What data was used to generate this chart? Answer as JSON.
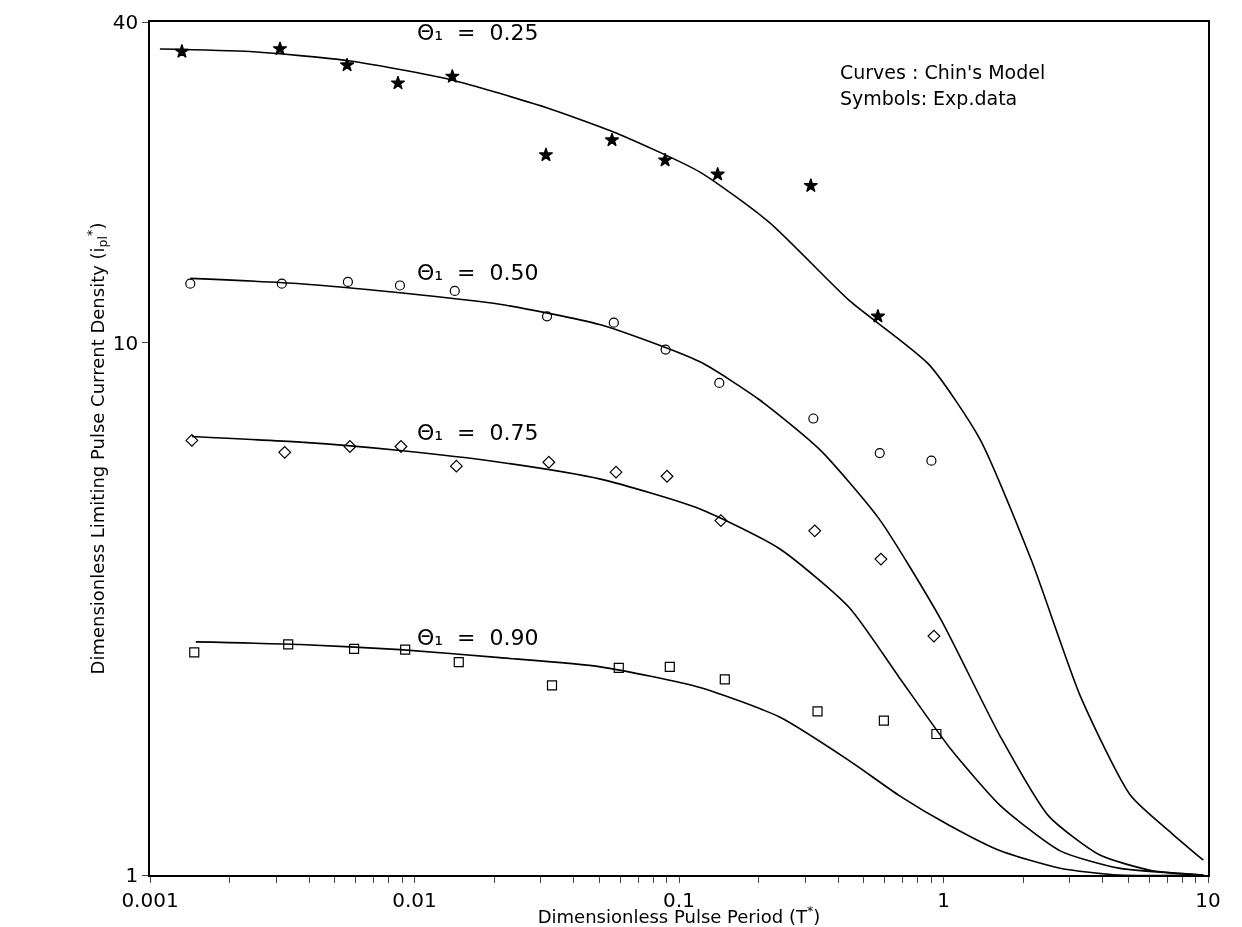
{
  "chart_data": {
    "type": "scatter",
    "xlabel": "Dimensionless Pulse Period (T$^{*}$)",
    "ylabel": "Dimensionless Limiting Pulse Current Density (i$_{pl}$$^{*}$)",
    "log": "xy",
    "xlim": [
      0.001,
      10
    ],
    "ylim": [
      1,
      40
    ],
    "xticks": [
      0.001,
      {
        "value": 0.002,
        "label": null
      },
      {
        "value": 0.003,
        "label": null
      },
      {
        "value": 0.004,
        "label": null
      },
      {
        "value": 0.005,
        "label": null
      },
      {
        "value": 0.006,
        "label": null
      },
      {
        "value": 0.007,
        "label": null
      },
      {
        "value": 0.008,
        "label": null
      },
      {
        "value": 0.009,
        "label": null
      },
      0.01,
      {
        "value": 0.02,
        "label": null
      },
      {
        "value": 0.03,
        "label": null
      },
      {
        "value": 0.04,
        "label": null
      },
      {
        "value": 0.05,
        "label": null
      },
      {
        "value": 0.06,
        "label": null
      },
      {
        "value": 0.07,
        "label": null
      },
      {
        "value": 0.08,
        "label": null
      },
      {
        "value": 0.09,
        "label": null
      },
      0.1,
      {
        "value": 0.2,
        "label": null
      },
      {
        "value": 0.3,
        "label": null
      },
      {
        "value": 0.4,
        "label": null
      },
      {
        "value": 0.5,
        "label": null
      },
      {
        "value": 0.6,
        "label": null
      },
      {
        "value": 0.7,
        "label": null
      },
      {
        "value": 0.8,
        "label": null
      },
      {
        "value": 0.9,
        "label": null
      },
      1,
      {
        "value": 2,
        "label": null
      },
      {
        "value": 3,
        "label": null
      },
      {
        "value": 4,
        "label": null
      },
      {
        "value": 5,
        "label": null
      },
      {
        "value": 6,
        "label": null
      },
      {
        "value": 7,
        "label": null
      },
      {
        "value": 8,
        "label": null
      },
      {
        "value": 9,
        "label": null
      },
      10
    ],
    "yticks": [
      1,
      10,
      40
    ],
    "grid": false,
    "series": [
      {
        "type": "line",
        "color": "#000000",
        "marker": "none",
        "x": [
          0.00109,
          0.00239,
          0.0057,
          0.0136,
          0.0324,
          0.0596,
          0.12,
          0.22,
          0.44,
          0.88,
          1.37,
          2.15,
          3.3,
          5.1,
          7.4,
          9.6
        ],
        "values": [
          35.6,
          35.2,
          33.8,
          31.2,
          27.5,
          24.6,
          20.9,
          16.8,
          12.0,
          9.1,
          6.6,
          3.9,
          2.16,
          1.41,
          1.19,
          1.066
        ]
      },
      {
        "type": "line",
        "color": "#000000",
        "marker": "none",
        "x": [
          0.00142,
          0.0037,
          0.00883,
          0.021,
          0.0505,
          0.12,
          0.202,
          0.34,
          0.57,
          0.97,
          1.64,
          2.5,
          3.9,
          6.1,
          9.6
        ],
        "values": [
          13.2,
          12.9,
          12.4,
          11.8,
          10.8,
          9.2,
          7.8,
          6.3,
          4.67,
          3.04,
          1.82,
          1.29,
          1.09,
          1.02,
          1.0
        ]
      },
      {
        "type": "line",
        "color": "#000000",
        "marker": "none",
        "x": [
          0.00144,
          0.0037,
          0.00883,
          0.021,
          0.0505,
          0.12,
          0.24,
          0.44,
          0.68,
          1.05,
          1.64,
          2.76,
          4.6,
          9.6
        ],
        "values": [
          6.66,
          6.5,
          6.27,
          5.96,
          5.54,
          4.87,
          4.1,
          3.18,
          2.35,
          1.74,
          1.35,
          1.11,
          1.03,
          1.0
        ]
      },
      {
        "type": "line",
        "color": "#000000",
        "marker": "none",
        "x": [
          0.00149,
          0.0037,
          0.00883,
          0.021,
          0.0505,
          0.12,
          0.24,
          0.44,
          0.68,
          1.05,
          1.64,
          2.76,
          4.6,
          9.6
        ],
        "values": [
          2.74,
          2.71,
          2.65,
          2.56,
          2.46,
          2.25,
          1.98,
          1.64,
          1.41,
          1.24,
          1.11,
          1.03,
          1.0,
          1.0
        ]
      },
      {
        "color": "#000000",
        "marker": "star",
        "x": [
          0.00132,
          0.0031,
          0.00556,
          0.00866,
          0.0139,
          0.0314,
          0.0558,
          0.0886,
          0.14,
          0.315,
          0.565
        ],
        "values": [
          35.2,
          35.6,
          33.2,
          30.7,
          31.6,
          22.5,
          24.0,
          22.0,
          20.7,
          19.7,
          11.2
        ]
      },
      {
        "color": "#000000",
        "marker": "circle",
        "x": [
          0.00142,
          0.00315,
          0.0056,
          0.00881,
          0.0142,
          0.0317,
          0.0567,
          0.089,
          0.142,
          0.322,
          0.574,
          0.9
        ],
        "values": [
          12.9,
          12.9,
          13.0,
          12.8,
          12.5,
          11.2,
          10.9,
          9.7,
          8.4,
          7.2,
          6.2,
          6.0
        ]
      },
      {
        "color": "#000000",
        "marker": "diamond",
        "x": [
          0.00144,
          0.00323,
          0.0057,
          0.00889,
          0.0144,
          0.0322,
          0.0578,
          0.0901,
          0.144,
          0.326,
          0.58,
          0.92
        ],
        "values": [
          6.55,
          6.22,
          6.38,
          6.38,
          5.86,
          5.96,
          5.71,
          5.61,
          4.63,
          4.43,
          3.92,
          2.81
        ]
      },
      {
        "color": "#000000",
        "marker": "square",
        "x": [
          0.00147,
          0.00333,
          0.00591,
          0.00922,
          0.0147,
          0.0331,
          0.0592,
          0.0923,
          0.149,
          0.334,
          0.595,
          0.94
        ],
        "values": [
          2.62,
          2.71,
          2.66,
          2.65,
          2.51,
          2.27,
          2.45,
          2.46,
          2.33,
          2.03,
          1.95,
          1.84
        ]
      }
    ],
    "annotations": [
      "Θ₁  =  0.25",
      "Θ₁  =  0.50",
      "Θ₁  =  0.75",
      "Θ₁  =  0.90",
      "Curves : Chin's Model",
      "Symbols: Exp.data"
    ]
  }
}
